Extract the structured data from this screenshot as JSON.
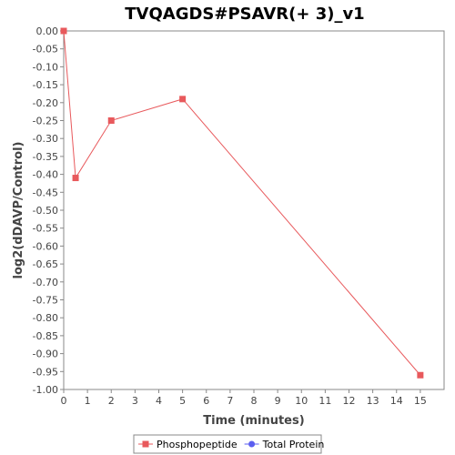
{
  "chart_data": {
    "type": "line",
    "title": "TVQAGDS#PSAVR(+ 3)_v1",
    "xlabel": "Time (minutes)",
    "ylabel": "log2(dDAVP/Control)",
    "xlim": [
      0,
      16
    ],
    "ylim": [
      -1.0,
      0.0
    ],
    "x_ticks": [
      0,
      1,
      2,
      3,
      4,
      5,
      6,
      7,
      8,
      9,
      10,
      11,
      12,
      13,
      14,
      15
    ],
    "x_tick_labels": [
      "0",
      "1",
      "2",
      "3",
      "4",
      "5",
      "6",
      "7",
      "8",
      "9",
      "10",
      "11",
      "12",
      "13",
      "14",
      "15"
    ],
    "y_ticks": [
      0.0,
      -0.05,
      -0.1,
      -0.15,
      -0.2,
      -0.25,
      -0.3,
      -0.35,
      -0.4,
      -0.45,
      -0.5,
      -0.55,
      -0.6,
      -0.65,
      -0.7,
      -0.75,
      -0.8,
      -0.85,
      -0.9,
      -0.95,
      -1.0
    ],
    "y_tick_labels": [
      "0.00",
      "-0.05",
      "-0.10",
      "-0.15",
      "-0.20",
      "-0.25",
      "-0.30",
      "-0.35",
      "-0.40",
      "-0.45",
      "-0.50",
      "-0.55",
      "-0.60",
      "-0.65",
      "-0.70",
      "-0.75",
      "-0.80",
      "-0.85",
      "-0.90",
      "-0.95",
      "-1.00"
    ],
    "grid": false,
    "legend_position": "bottom",
    "series": [
      {
        "name": "Phosphopeptide",
        "color": "#e8595c",
        "marker": "square",
        "x": [
          0,
          0.5,
          2,
          5,
          15
        ],
        "y": [
          0.0,
          -0.41,
          -0.25,
          -0.19,
          -0.96
        ]
      },
      {
        "name": "Total Protein",
        "color": "#5b5ef0",
        "marker": "circle",
        "x": [],
        "y": []
      }
    ]
  }
}
